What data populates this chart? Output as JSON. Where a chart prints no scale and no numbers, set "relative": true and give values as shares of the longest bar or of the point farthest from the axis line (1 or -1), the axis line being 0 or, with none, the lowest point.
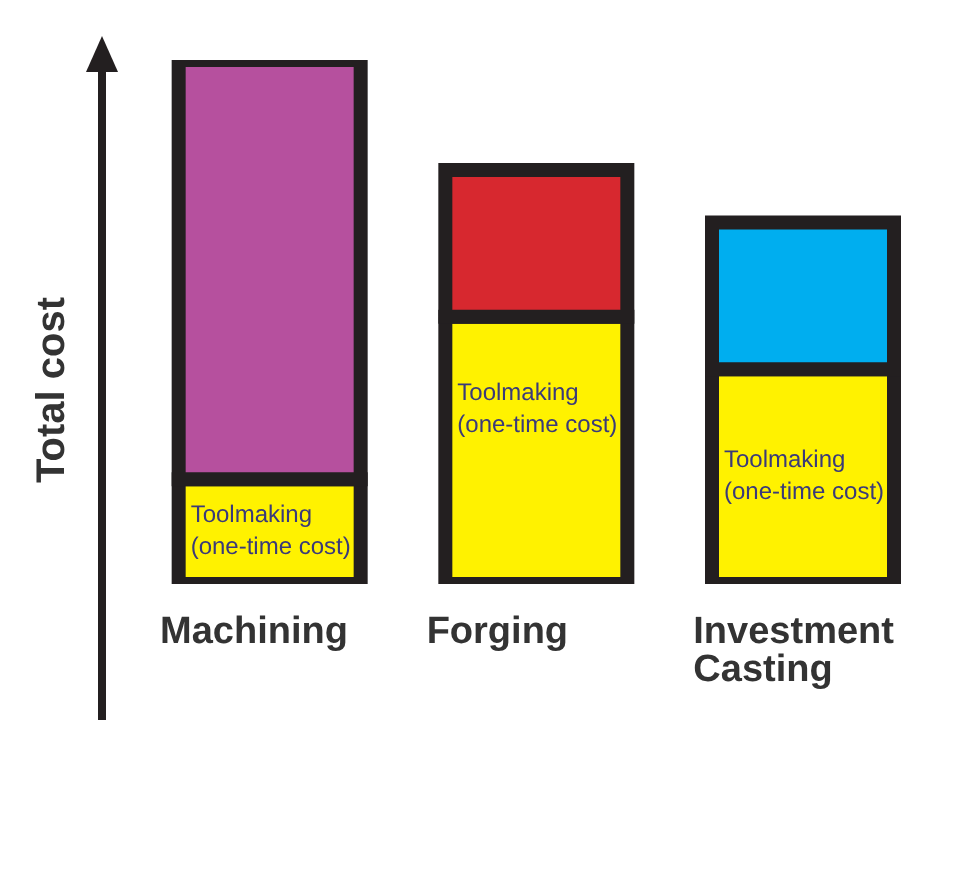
{
  "chart_data": {
    "type": "bar",
    "stacked": true,
    "relative": true,
    "ylabel": "Total cost",
    "categories": [
      "Machining",
      "Forging",
      "Investment Casting"
    ],
    "series": [
      {
        "colors": [
          "#fff200",
          "#fff200",
          "#fff200"
        ],
        "values": [
          0.2,
          0.51,
          0.41
        ]
      },
      {
        "colors": [
          "#b6509e",
          "#d7282f",
          "#00aeef"
        ],
        "values": [
          0.8,
          0.28,
          0.28
        ]
      }
    ],
    "annotations": [
      "Toolmaking (one-time cost)",
      "Toolmaking (one-time cost)",
      "Toolmaking (one-time cost)"
    ],
    "legend": false,
    "grid": false
  }
}
